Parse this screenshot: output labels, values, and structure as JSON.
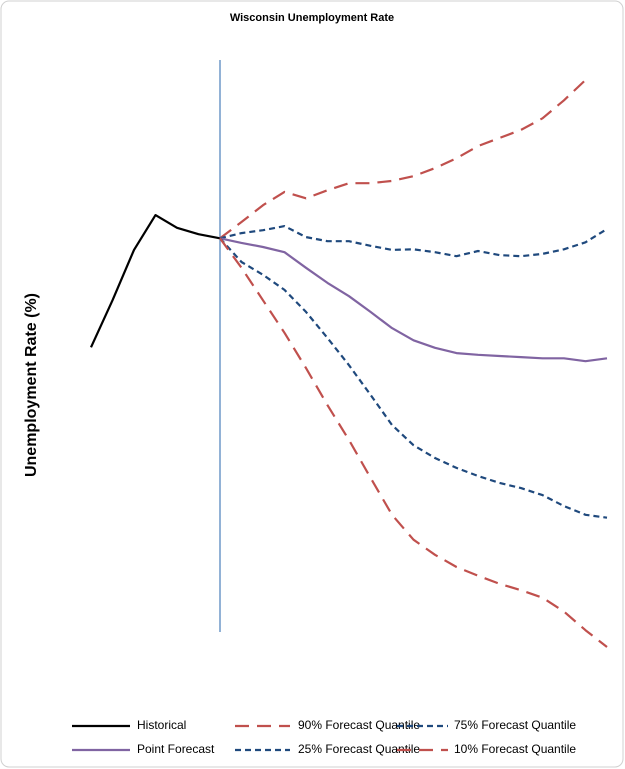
{
  "chart_data": {
    "type": "line",
    "title": "Wisconsin Unemployment Rate",
    "y_label": "Unemployment Rate (%)",
    "categories": [
      null,
      null,
      null,
      null,
      null,
      null,
      null,
      null,
      null,
      null,
      null,
      null,
      null,
      null,
      null,
      null,
      null,
      null,
      null,
      null,
      null,
      null,
      null,
      null,
      null
    ],
    "series": [
      {
        "name": "Historical",
        "color": "#000000",
        "dash": "solid",
        "values": [
          52.2,
          60.3,
          69.0,
          75.0,
          72.8,
          71.7,
          71.0,
          null,
          null,
          null,
          null,
          null,
          null,
          null,
          null,
          null,
          null,
          null,
          null,
          null,
          null,
          null,
          null,
          null,
          null
        ]
      },
      {
        "name": "90% Forecast Quantile",
        "color": "#c0504d",
        "dash": "long",
        "values": [
          null,
          null,
          null,
          null,
          null,
          null,
          71.0,
          73.8,
          76.7,
          79.0,
          77.9,
          79.3,
          80.5,
          80.5,
          80.9,
          81.7,
          83.1,
          84.8,
          86.9,
          88.3,
          89.7,
          91.7,
          94.8,
          98.3,
          null
        ]
      },
      {
        "name": "75% Forecast Quantile",
        "color": "#1f497d",
        "dash": "short",
        "values": [
          null,
          null,
          null,
          null,
          null,
          null,
          71.0,
          71.9,
          72.4,
          73.1,
          71.2,
          70.5,
          70.5,
          69.7,
          69.0,
          69.1,
          68.6,
          67.9,
          68.8,
          68.1,
          67.9,
          68.3,
          69.1,
          70.3,
          72.6
        ]
      },
      {
        "name": "Point Forecast",
        "color": "#8064a2",
        "dash": "solid",
        "values": [
          null,
          null,
          null,
          null,
          null,
          null,
          71.0,
          70.2,
          69.5,
          68.6,
          65.9,
          63.3,
          61.0,
          58.3,
          55.5,
          53.4,
          52.1,
          51.2,
          50.9,
          50.7,
          50.5,
          50.3,
          50.3,
          49.8,
          50.3
        ]
      },
      {
        "name": "25% Forecast Quantile",
        "color": "#1f497d",
        "dash": "short",
        "values": [
          null,
          null,
          null,
          null,
          null,
          null,
          71.0,
          66.9,
          64.7,
          62.1,
          58.3,
          53.8,
          49.1,
          44.0,
          38.8,
          35.3,
          33.1,
          31.4,
          30.0,
          28.8,
          27.9,
          26.7,
          24.8,
          23.3,
          22.8
        ]
      },
      {
        "name": "10% Forecast Quantile",
        "color": "#c0504d",
        "dash": "long",
        "values": [
          null,
          null,
          null,
          null,
          null,
          null,
          71.0,
          65.9,
          60.3,
          54.7,
          48.6,
          42.2,
          36.2,
          29.7,
          23.3,
          19.0,
          16.4,
          14.3,
          12.8,
          11.4,
          10.3,
          9.0,
          6.6,
          3.4,
          0.5
        ]
      }
    ],
    "forecast_start_color": "#4a7ebb"
  }
}
